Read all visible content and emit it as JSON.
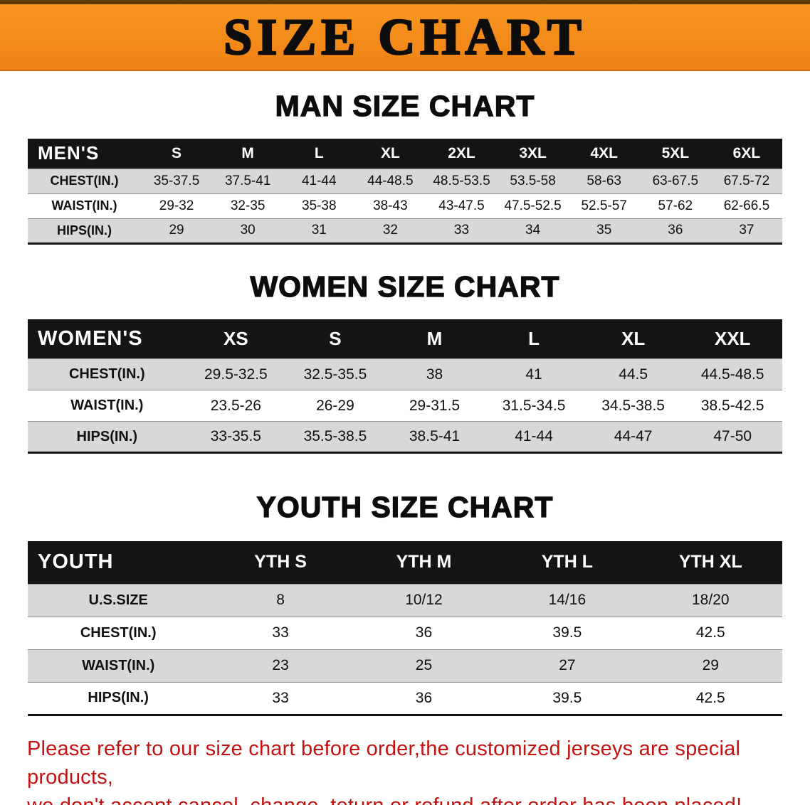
{
  "banner": {
    "title": "SIZE CHART"
  },
  "sections": {
    "men": {
      "heading": "MAN SIZE CHART",
      "table": {
        "header": [
          "MEN'S",
          "S",
          "M",
          "L",
          "XL",
          "2XL",
          "3XL",
          "4XL",
          "5XL",
          "6XL"
        ],
        "rows": [
          [
            "CHEST(IN.)",
            "35-37.5",
            "37.5-41",
            "41-44",
            "44-48.5",
            "48.5-53.5",
            "53.5-58",
            "58-63",
            "63-67.5",
            "67.5-72"
          ],
          [
            "WAIST(IN.)",
            "29-32",
            "32-35",
            "35-38",
            "38-43",
            "43-47.5",
            "47.5-52.5",
            "52.5-57",
            "57-62",
            "62-66.5"
          ],
          [
            "HIPS(IN.)",
            "29",
            "30",
            "31",
            "32",
            "33",
            "34",
            "35",
            "36",
            "37"
          ]
        ]
      }
    },
    "women": {
      "heading": "WOMEN SIZE CHART",
      "table": {
        "header": [
          "WOMEN'S",
          "XS",
          "S",
          "M",
          "L",
          "XL",
          "XXL"
        ],
        "rows": [
          [
            "CHEST(IN.)",
            "29.5-32.5",
            "32.5-35.5",
            "38",
            "41",
            "44.5",
            "44.5-48.5"
          ],
          [
            "WAIST(IN.)",
            "23.5-26",
            "26-29",
            "29-31.5",
            "31.5-34.5",
            "34.5-38.5",
            "38.5-42.5"
          ],
          [
            "HIPS(IN.)",
            "33-35.5",
            "35.5-38.5",
            "38.5-41",
            "41-44",
            "44-47",
            "47-50"
          ]
        ]
      }
    },
    "youth": {
      "heading": "YOUTH SIZE CHART",
      "table": {
        "header": [
          "YOUTH",
          "YTH S",
          "YTH M",
          "YTH L",
          "YTH XL"
        ],
        "rows": [
          [
            "U.S.SIZE",
            "8",
            "10/12",
            "14/16",
            "18/20"
          ],
          [
            "CHEST(IN.)",
            "33",
            "36",
            "39.5",
            "42.5"
          ],
          [
            "WAIST(IN.)",
            "23",
            "25",
            "27",
            "29"
          ],
          [
            "HIPS(IN.)",
            "33",
            "36",
            "39.5",
            "42.5"
          ]
        ]
      }
    }
  },
  "footer": {
    "line1": "Please refer to our size chart before order,the customized jerseys are special products,",
    "line2": "we don't accept cancel, change, teturn or refund after order has been placed!"
  },
  "colors": {
    "banner_orange": "#f7951f",
    "table_header_black": "#141414",
    "row_gray": "#d8d8d8",
    "footer_red": "#c41212"
  }
}
